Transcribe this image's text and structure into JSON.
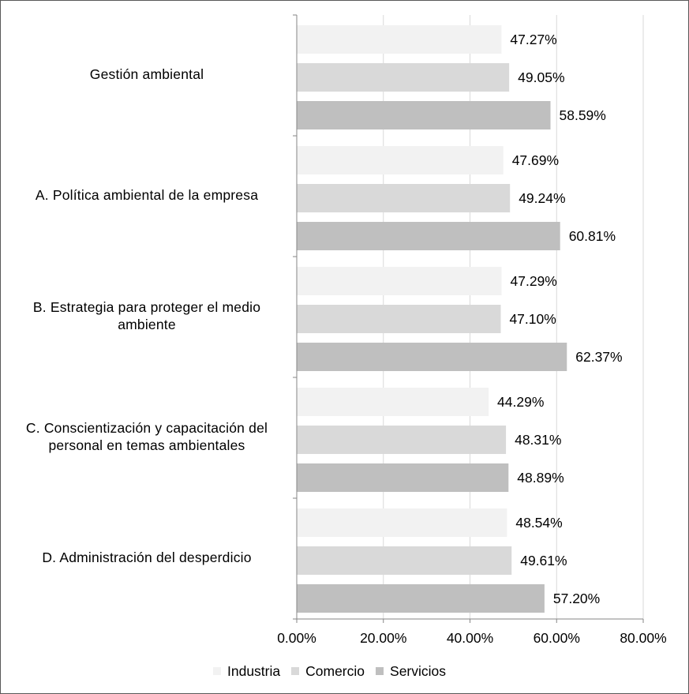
{
  "chart_data": {
    "type": "bar",
    "orientation": "horizontal",
    "categories": [
      [
        "Gestión ambiental"
      ],
      [
        "A. Política ambiental de la empresa"
      ],
      [
        "B. Estrategia para proteger el medio",
        "ambiente"
      ],
      [
        "C. Conscientización y capacitación del",
        "personal en temas ambientales"
      ],
      [
        "D. Administración del desperdicio"
      ]
    ],
    "series": [
      {
        "name": "Industria",
        "color": "#f2f2f2",
        "values": [
          47.27,
          47.69,
          47.29,
          44.29,
          48.54
        ],
        "labels": [
          "47.27%",
          "47.69%",
          "47.29%",
          "44.29%",
          "48.54%"
        ]
      },
      {
        "name": "Comercio",
        "color": "#d9d9d9",
        "values": [
          49.05,
          49.24,
          47.1,
          48.31,
          49.61
        ],
        "labels": [
          "49.05%",
          "49.24%",
          "47.10%",
          "48.31%",
          "49.61%"
        ]
      },
      {
        "name": "Servicios",
        "color": "#bfbfbf",
        "values": [
          58.59,
          60.81,
          62.37,
          48.89,
          57.2
        ],
        "labels": [
          "58.59%",
          "60.81%",
          "62.37%",
          "48.89%",
          "57.20%"
        ]
      }
    ],
    "xlim": [
      0,
      80
    ],
    "xticks": [
      0,
      20,
      40,
      60,
      80
    ],
    "xtick_labels": [
      "0.00%",
      "20.00%",
      "40.00%",
      "60.00%",
      "80.00%"
    ],
    "grid": true,
    "legend": "bottom",
    "title": "",
    "xlabel": "",
    "ylabel": ""
  },
  "colors": {
    "axis": "#868686",
    "grid": "#d9d9d9"
  }
}
